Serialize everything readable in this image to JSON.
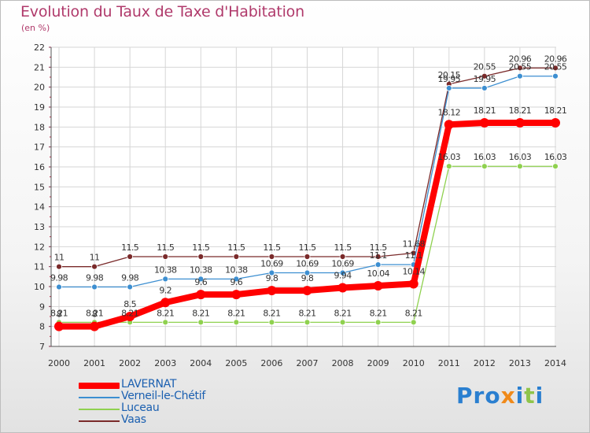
{
  "title": "Evolution du Taux de Taxe d'Habitation",
  "subtitle": "(en %)",
  "brand": "Proxiti",
  "chart_data": {
    "type": "line",
    "x": [
      2000,
      2001,
      2002,
      2003,
      2004,
      2005,
      2006,
      2007,
      2008,
      2009,
      2010,
      2011,
      2012,
      2013,
      2014
    ],
    "ylim": [
      7,
      22
    ],
    "yticks": [
      7,
      8,
      9,
      10,
      11,
      12,
      13,
      14,
      15,
      16,
      17,
      18,
      19,
      20,
      21,
      22
    ],
    "grid": true,
    "legend_position": "bottom-left",
    "series": [
      {
        "name": "LAVERNAT",
        "color": "#ff0000",
        "values": [
          8,
          8,
          8.5,
          9.2,
          9.6,
          9.6,
          9.8,
          9.8,
          9.94,
          10.04,
          10.14,
          18.12,
          18.21,
          18.21,
          18.21
        ],
        "labels": [
          "8",
          "8",
          "8.5",
          "9.2",
          "9.6",
          "9.6",
          "9.8",
          "9.8",
          "9.94",
          "10.04",
          "10.14",
          "18.12",
          "18.21",
          "18.21",
          "18.21"
        ]
      },
      {
        "name": "Verneil-le-Chétif",
        "color": "#3d8fd1",
        "values": [
          9.98,
          9.98,
          9.98,
          10.38,
          10.38,
          10.38,
          10.69,
          10.69,
          10.69,
          11.1,
          11.1,
          19.95,
          19.95,
          20.55,
          20.55
        ],
        "labels": [
          "9.98",
          "9.98",
          "9.98",
          "10.38",
          "10.38",
          "10.38",
          "10.69",
          "10.69",
          "10.69",
          "11.1",
          "11.1",
          "19.95",
          "19.95",
          "20.55",
          "20.55"
        ]
      },
      {
        "name": "Luceau",
        "color": "#8fd14f",
        "values": [
          8.21,
          8.21,
          8.21,
          8.21,
          8.21,
          8.21,
          8.21,
          8.21,
          8.21,
          8.21,
          8.21,
          16.03,
          16.03,
          16.03,
          16.03
        ],
        "labels": [
          "8.21",
          "8.21",
          "8.21",
          "8.21",
          "8.21",
          "8.21",
          "8.21",
          "8.21",
          "8.21",
          "8.21",
          "8.21",
          "16.03",
          "16.03",
          "16.03",
          "16.03"
        ]
      },
      {
        "name": "Vaas",
        "color": "#7a2a2a",
        "values": [
          11,
          11,
          11.5,
          11.5,
          11.5,
          11.5,
          11.5,
          11.5,
          11.5,
          11.5,
          11.68,
          20.15,
          20.55,
          20.96,
          20.96
        ],
        "labels": [
          "11",
          "11",
          "11.5",
          "11.5",
          "11.5",
          "11.5",
          "11.5",
          "11.5",
          "11.5",
          "11.5",
          "11.68",
          "20.15",
          "20.55",
          "20.96",
          "20.96"
        ]
      }
    ]
  }
}
